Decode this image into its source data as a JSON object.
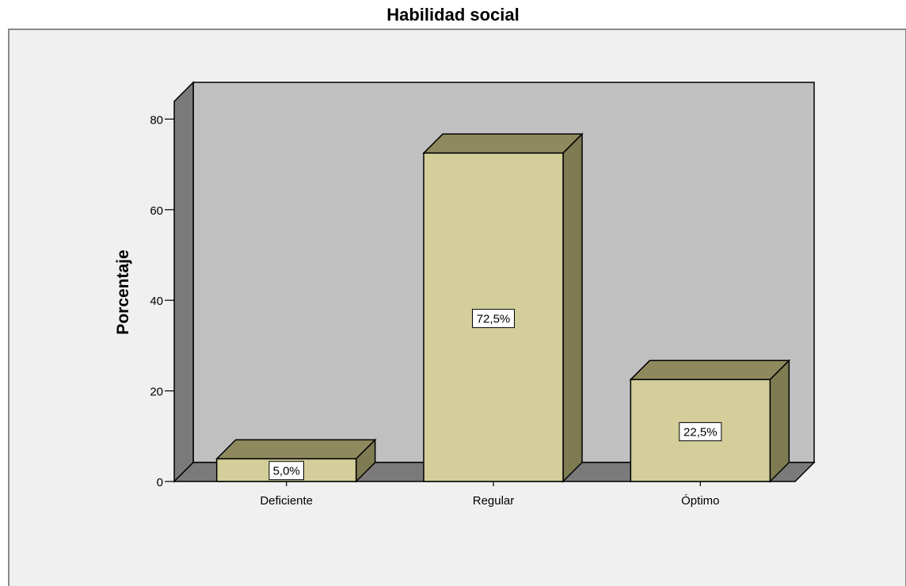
{
  "chart_data": {
    "type": "bar",
    "title": "Habilidad social",
    "xlabel": "",
    "ylabel": "Porcentaje",
    "categories": [
      "Deficiente",
      "Regular",
      "Óptimo"
    ],
    "values": [
      5.0,
      72.5,
      22.5
    ],
    "data_labels": [
      "5,0%",
      "72,5%",
      "22,5%"
    ],
    "yticks": [
      0,
      20,
      40,
      60,
      80
    ],
    "ylim": [
      0,
      80
    ],
    "style": "3d",
    "grid": false,
    "legend": "none"
  },
  "colors": {
    "bar_front": "#d3ce9a",
    "bar_top": "#8e8a5e",
    "bar_side": "#7e7a52",
    "plot_back": "#c0c0c0",
    "plot_side_wall": "#7a7a7a",
    "plot_floor": "#7a7a7a",
    "outer_background": "#f0f0f0"
  }
}
